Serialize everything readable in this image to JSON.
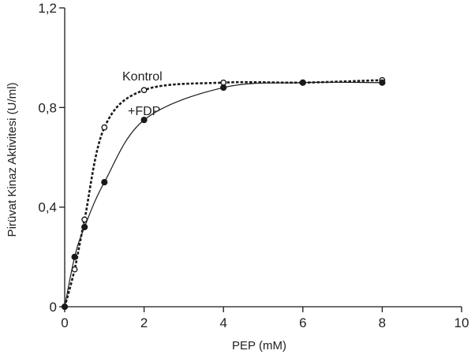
{
  "chart_data": {
    "type": "line",
    "xlabel": "PEP (mM)",
    "ylabel": "Pirüvat Kinaz Aktivitesi (U/ml)",
    "xlim": [
      0,
      10
    ],
    "ylim": [
      0,
      1.2
    ],
    "x_ticks": [
      0,
      2,
      4,
      6,
      8,
      10
    ],
    "x_tick_labels": [
      "0",
      "2",
      "4",
      "6",
      "8",
      "10"
    ],
    "y_ticks": [
      0,
      0.4,
      0.8,
      1.2
    ],
    "y_tick_labels": [
      "0",
      "0,4",
      "0,8",
      "1,2"
    ],
    "grid": false,
    "series": [
      {
        "name": "Kontrol",
        "line_style": "dashed",
        "marker": "open-circle",
        "color": "#1a1a1a",
        "points": [
          [
            0,
            0
          ],
          [
            0.25,
            0.15
          ],
          [
            0.5,
            0.35
          ],
          [
            1,
            0.72
          ],
          [
            2,
            0.87
          ],
          [
            4,
            0.9
          ],
          [
            6,
            0.9
          ],
          [
            8,
            0.91
          ]
        ]
      },
      {
        "name": "+FDP",
        "line_style": "solid",
        "marker": "filled-circle",
        "color": "#1a1a1a",
        "points": [
          [
            0,
            0
          ],
          [
            0.25,
            0.2
          ],
          [
            0.5,
            0.32
          ],
          [
            1,
            0.5
          ],
          [
            2,
            0.75
          ],
          [
            4,
            0.88
          ],
          [
            6,
            0.9
          ],
          [
            8,
            0.9
          ]
        ]
      }
    ],
    "annotations": [
      {
        "text": "Kontrol",
        "series": "Kontrol"
      },
      {
        "text": "+FDP",
        "series": "+FDP"
      }
    ]
  }
}
